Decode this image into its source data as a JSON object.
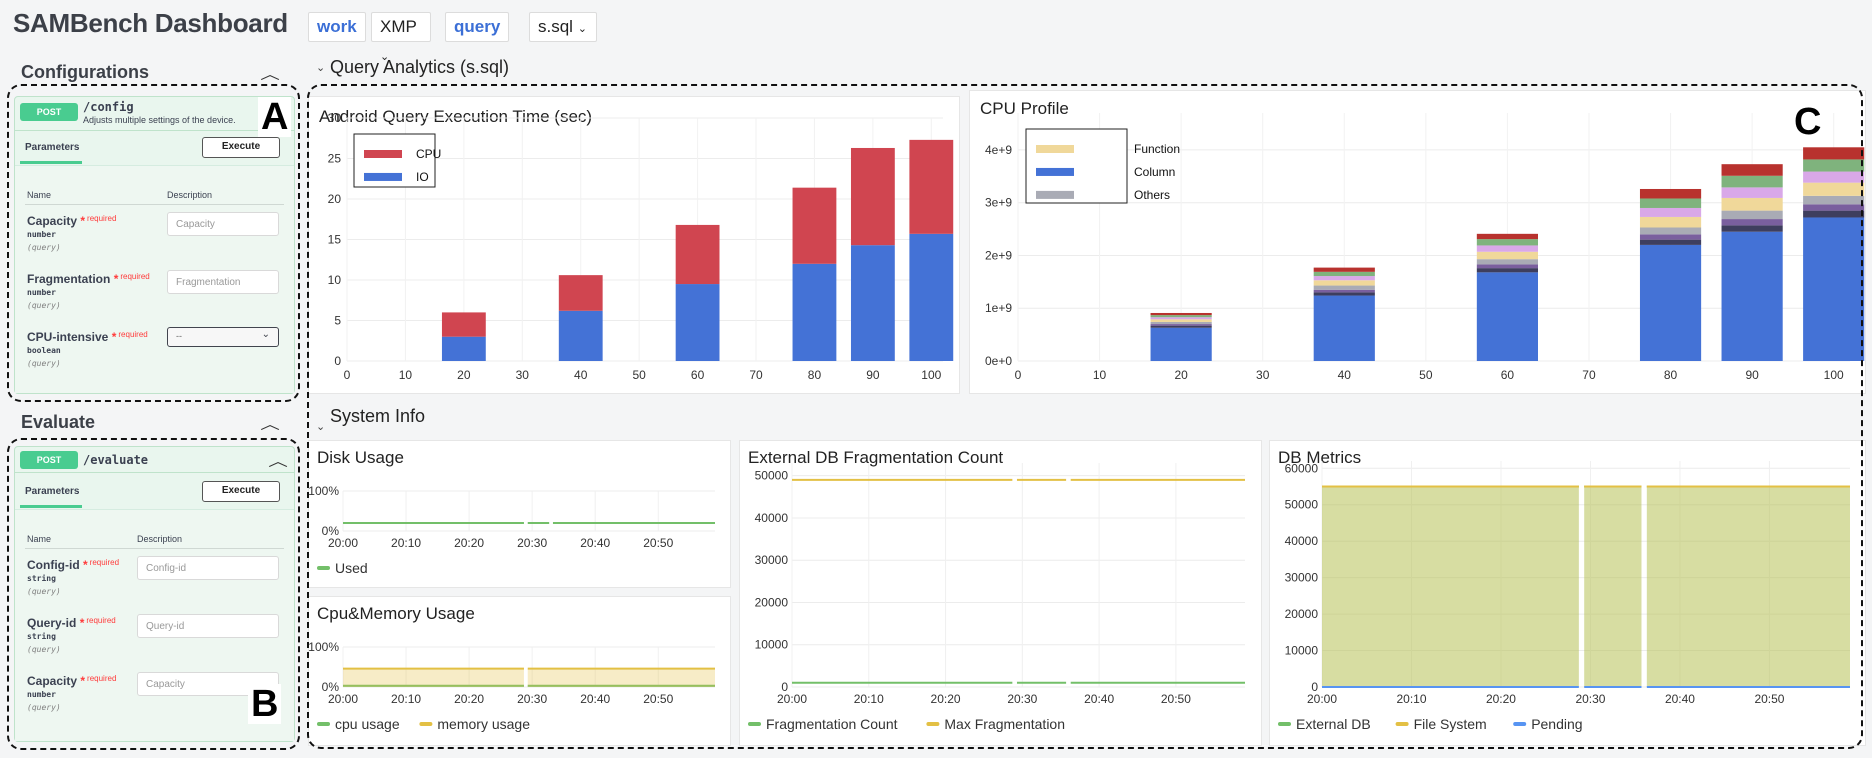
{
  "app": {
    "title": "SAMBench Dashboard"
  },
  "sidebar": {
    "configurations": {
      "header": "Configurations",
      "label": "A",
      "method": "POST",
      "path": "/config",
      "summary": "Adjusts multiple settings of the device.",
      "tab": "Parameters",
      "execute": "Execute",
      "col_name": "Name",
      "col_description": "Description",
      "params": [
        {
          "name": "Capacity",
          "required": "required",
          "type": "number",
          "in": "(query)",
          "placeholder": "Capacity"
        },
        {
          "name": "Fragmentation",
          "required": "required",
          "type": "number",
          "in": "(query)",
          "placeholder": "Fragmentation"
        },
        {
          "name": "CPU-intensive",
          "required": "required",
          "type": "boolean",
          "in": "(query)",
          "placeholder": "--"
        }
      ]
    },
    "evaluate": {
      "header": "Evaluate",
      "label": "B",
      "method": "POST",
      "path": "/evaluate",
      "tab": "Parameters",
      "execute": "Execute",
      "col_name": "Name",
      "col_description": "Description",
      "params": [
        {
          "name": "Config-id",
          "required": "required",
          "type": "string",
          "in": "(query)",
          "placeholder": "Config-id"
        },
        {
          "name": "Query-id",
          "required": "required",
          "type": "string",
          "in": "(query)",
          "placeholder": "Query-id"
        },
        {
          "name": "Capacity",
          "required": "required",
          "type": "number",
          "in": "(query)",
          "placeholder": "Capacity"
        }
      ]
    }
  },
  "variables": [
    {
      "name": "work",
      "value": "XMP"
    },
    {
      "name": "query",
      "value": "s.sql"
    }
  ],
  "rows": {
    "query_analytics": "Query Analytics (s.sql)",
    "system_info": "System Info",
    "panel_label": "C"
  },
  "colors": {
    "cpu": "#d04550",
    "io": "#4472d6",
    "green": "#73bf69",
    "yellow": "#e3c044",
    "blue": "#5794f2",
    "function": "#f0d89a",
    "others": "#a9abb5"
  },
  "chart_data": [
    {
      "id": "exec_time",
      "type": "bar",
      "stacked": true,
      "title": "Android Query Execution Time (sec)",
      "x": [
        20,
        40,
        60,
        80,
        90,
        100
      ],
      "xticks": [
        0,
        10,
        20,
        30,
        40,
        50,
        60,
        70,
        80,
        90,
        100
      ],
      "xlim": [
        0,
        102
      ],
      "yticks": [
        0,
        5,
        10,
        15,
        20,
        25,
        30
      ],
      "ylim": [
        0,
        30
      ],
      "series": [
        {
          "name": "IO",
          "color": "#4472d6",
          "values": [
            3.0,
            6.2,
            9.5,
            12.0,
            14.3,
            15.7
          ]
        },
        {
          "name": "CPU",
          "color": "#d04550",
          "values": [
            3.0,
            4.4,
            7.3,
            9.4,
            12.0,
            11.6
          ]
        }
      ],
      "legend_order": [
        "CPU",
        "IO"
      ],
      "legend": "top-left"
    },
    {
      "id": "cpu_profile",
      "type": "bar",
      "stacked": true,
      "title": "CPU Profile",
      "x": [
        20,
        40,
        60,
        80,
        90,
        100
      ],
      "xticks": [
        0,
        10,
        20,
        30,
        40,
        50,
        60,
        70,
        80,
        90,
        100
      ],
      "xlim": [
        0,
        102
      ],
      "yticks": [
        "0e+0",
        "1e+9",
        "2e+9",
        "3e+9",
        "4e+9"
      ],
      "ylim": [
        0,
        4700000000.0
      ],
      "series": [
        {
          "name": "Column",
          "color": "#4472d6",
          "values": [
            630000000.0,
            1240000000.0,
            1680000000.0,
            2200000000.0,
            2450000000.0,
            2720000000.0
          ]
        },
        {
          "name": "",
          "color": "#3e3e5e",
          "values": [
            40000000.0,
            60000000.0,
            80000000.0,
            100000000.0,
            120000000.0,
            130000000.0
          ]
        },
        {
          "name": "",
          "color": "#7a5f9e",
          "values": [
            30000000.0,
            50000000.0,
            70000000.0,
            100000000.0,
            120000000.0,
            120000000.0
          ]
        },
        {
          "name": "Others",
          "color": "#a9abb5",
          "values": [
            40000000.0,
            80000000.0,
            100000000.0,
            130000000.0,
            160000000.0,
            160000000.0
          ]
        },
        {
          "name": "Function",
          "color": "#f0d89a",
          "values": [
            50000000.0,
            100000000.0,
            140000000.0,
            200000000.0,
            240000000.0,
            250000000.0
          ]
        },
        {
          "name": "",
          "color": "#d9a8e8",
          "values": [
            40000000.0,
            80000000.0,
            120000000.0,
            170000000.0,
            200000000.0,
            210000000.0
          ]
        },
        {
          "name": "",
          "color": "#7fb37d",
          "values": [
            40000000.0,
            80000000.0,
            120000000.0,
            180000000.0,
            220000000.0,
            230000000.0
          ]
        },
        {
          "name": "",
          "color": "#b8322e",
          "values": [
            40000000.0,
            80000000.0,
            100000000.0,
            180000000.0,
            220000000.0,
            230000000.0
          ]
        }
      ],
      "legend_order": [
        "Function",
        "Column",
        "Others"
      ],
      "legend": "top-left"
    },
    {
      "id": "disk_usage",
      "type": "line",
      "title": "Disk Usage",
      "yticks": [
        "100%",
        "0%"
      ],
      "xticks": [
        "20:00",
        "20:10",
        "20:20",
        "20:30",
        "20:40",
        "20:50"
      ],
      "series": [
        {
          "name": "Used",
          "color": "#73bf69",
          "value": 0.2
        }
      ],
      "gaps": [
        "20:29",
        "20:33"
      ],
      "legend": "bottom"
    },
    {
      "id": "cpu_mem",
      "type": "area",
      "title": "Cpu&Memory Usage",
      "yticks": [
        "100%",
        "0%"
      ],
      "xticks": [
        "20:00",
        "20:10",
        "20:20",
        "20:30",
        "20:40",
        "20:50"
      ],
      "series": [
        {
          "name": "cpu usage",
          "color": "#73bf69",
          "value": 0.03
        },
        {
          "name": "memory usage",
          "color": "#e3c044",
          "value": 0.46
        }
      ],
      "gaps": [
        "20:29"
      ],
      "legend": "bottom"
    },
    {
      "id": "frag_count",
      "type": "line",
      "title": "External DB Fragmentation Count",
      "yticks": [
        0,
        10000,
        20000,
        30000,
        40000,
        50000
      ],
      "ylim": [
        0,
        53000
      ],
      "xticks": [
        "20:00",
        "20:10",
        "20:20",
        "20:30",
        "20:40",
        "20:50"
      ],
      "series": [
        {
          "name": "Fragmentation Count",
          "color": "#73bf69",
          "value": 1000
        },
        {
          "name": "Max Fragmentation",
          "color": "#e3c044",
          "value": 49000
        }
      ],
      "gaps": [
        "20:29",
        "20:36"
      ],
      "legend": "bottom"
    },
    {
      "id": "db_metrics",
      "type": "area",
      "title": "DB Metrics",
      "yticks": [
        0,
        10000,
        20000,
        30000,
        40000,
        50000,
        60000
      ],
      "ylim": [
        0,
        62000
      ],
      "xticks": [
        "20:00",
        "20:10",
        "20:20",
        "20:30",
        "20:40",
        "20:50"
      ],
      "series": [
        {
          "name": "External DB",
          "color": "#73bf69",
          "value": 55000
        },
        {
          "name": "File System",
          "color": "#e3c044",
          "value": 55000
        },
        {
          "name": "Pending",
          "color": "#5794f2",
          "value": 0
        }
      ],
      "gaps": [
        "20:29",
        "20:36"
      ],
      "legend": "bottom"
    }
  ]
}
